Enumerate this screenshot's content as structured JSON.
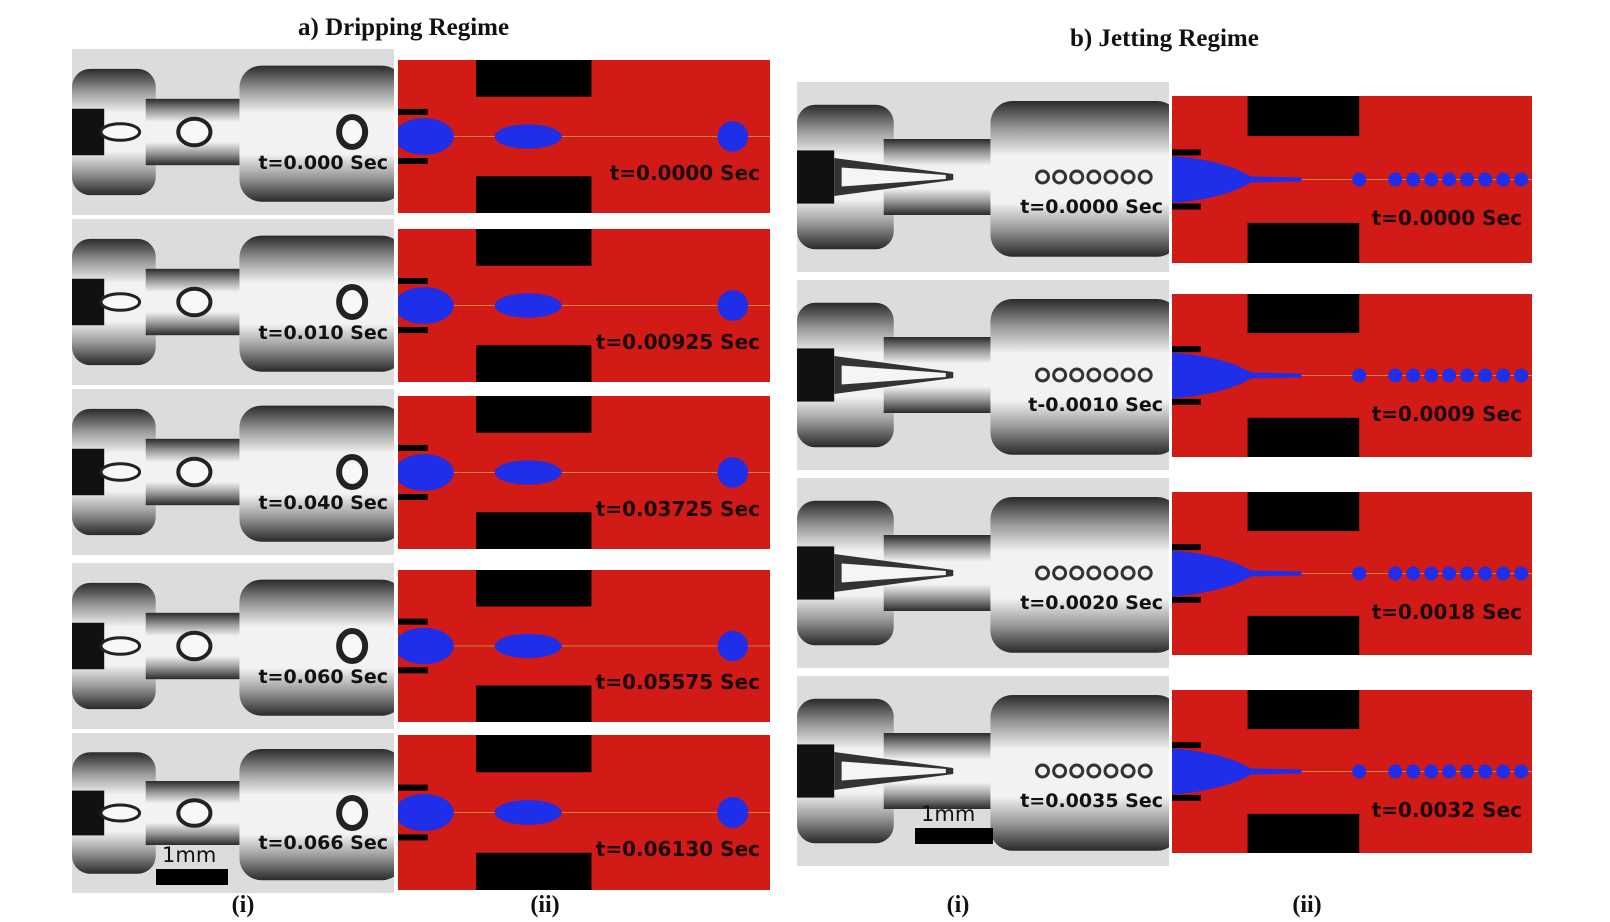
{
  "panels": [
    {
      "title": "a) Dripping Regime",
      "col_labels": [
        "(i)",
        "(ii)"
      ],
      "scale_bar_label": "1mm",
      "rows": [
        {
          "photo_time": "t=0.000 Sec",
          "sim_time": "t=0.0000 Sec"
        },
        {
          "photo_time": "t=0.010 Sec",
          "sim_time": "t=0.00925 Sec"
        },
        {
          "photo_time": "t=0.040 Sec",
          "sim_time": "t=0.03725 Sec"
        },
        {
          "photo_time": "t=0.060 Sec",
          "sim_time": "t=0.05575 Sec"
        },
        {
          "photo_time": "t=0.066 Sec",
          "sim_time": "t=0.06130 Sec"
        }
      ]
    },
    {
      "title": "b) Jetting Regime",
      "col_labels": [
        "(i)",
        "(ii)"
      ],
      "scale_bar_label": "1mm",
      "rows": [
        {
          "photo_time": "t=0.0000 Sec",
          "sim_time": "t=0.0000 Sec"
        },
        {
          "photo_time": "t-0.0010 Sec",
          "sim_time": "t=0.0009 Sec"
        },
        {
          "photo_time": "t=0.0020 Sec",
          "sim_time": "t=0.0018 Sec"
        },
        {
          "photo_time": "t=0.0035 Sec",
          "sim_time": "t=0.0032 Sec"
        }
      ]
    }
  ],
  "colors": {
    "continuous_phase": "#d21a17",
    "dispersed_phase": "#1f2ee8",
    "wall": "#000000"
  }
}
